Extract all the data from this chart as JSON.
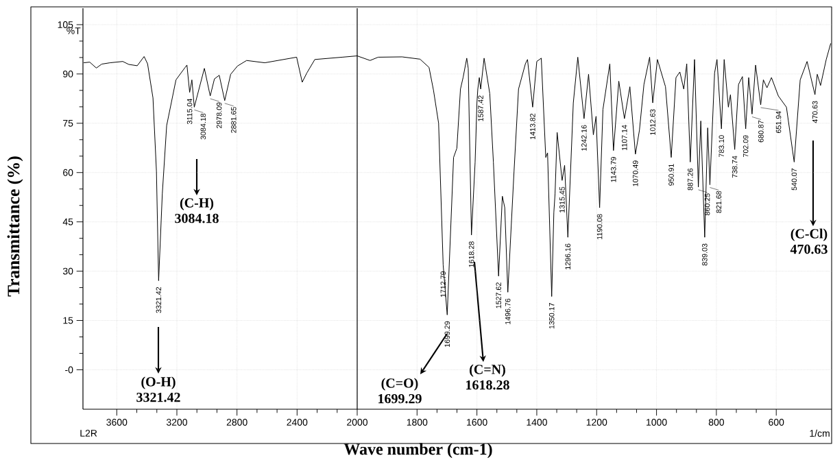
{
  "chart_data": [
    {
      "type": "line",
      "ylabel": "Transmittance (%)",
      "xlim": [
        3825,
        2000
      ],
      "ylim": [
        -12,
        110
      ],
      "xticks": [
        3600,
        3200,
        2800,
        2400,
        2000
      ],
      "yticks": [
        {
          "value": 0,
          "label": "-0"
        },
        15,
        30,
        45,
        60,
        75,
        90,
        105
      ],
      "grid": true,
      "color": "#000000",
      "x": [
        3820,
        3780,
        3736,
        3700,
        3645,
        3560,
        3520,
        3464,
        3418,
        3395,
        3359,
        3336,
        3321.42,
        3297,
        3268,
        3206,
        3145,
        3133,
        3115.04,
        3100,
        3084.18,
        3017,
        2978.09,
        2950,
        2918,
        2881.65,
        2842,
        2797,
        2736,
        2615,
        2403,
        2366,
        2335,
        2282,
        2100,
        2000
      ],
      "values": [
        93.4,
        93.6,
        91.8,
        93.0,
        93.4,
        93.8,
        92.9,
        92.5,
        95.3,
        93.1,
        82.7,
        60.4,
        27.1,
        53.5,
        74.3,
        88.2,
        92,
        92.7,
        84.4,
        88.2,
        79.9,
        91.7,
        83.3,
        88.5,
        89.6,
        81.9,
        89.9,
        92.4,
        94.1,
        93.4,
        95.1,
        87.5,
        90.3,
        94.4,
        95.1,
        95.5
      ],
      "annotations": [
        "%T",
        "L2R",
        {
          "text": "3321.42",
          "x": 3321.42,
          "y": 27.1
        },
        {
          "text": "3115.04",
          "x": 3115.04,
          "y": 84.4
        },
        {
          "text": "3084.18",
          "x": 3084.18,
          "y": 79.9
        },
        {
          "text": "2978.09",
          "x": 2978.09,
          "y": 83.3
        },
        {
          "text": "2881.65",
          "x": 2881.65,
          "y": 81.9
        },
        "(O-H) 3321.42",
        "(C-H) 3084.18"
      ]
    },
    {
      "type": "line",
      "xlabel": "Wave number (cm-1)",
      "xlim": [
        2000,
        415
      ],
      "ylim": [
        -12,
        110
      ],
      "xticks": [
        1800,
        1600,
        1400,
        1200,
        1000,
        800,
        600
      ],
      "yticks": [
        0,
        15,
        30,
        45,
        60,
        75,
        90,
        105
      ],
      "tick_labels": "x",
      "grid": true,
      "color": "#000000",
      "x": [
        2000,
        1957,
        1930,
        1850,
        1790,
        1760,
        1745,
        1728,
        1712.79,
        1699.29,
        1678,
        1667,
        1655,
        1646,
        1634,
        1629,
        1618.28,
        1606,
        1600,
        1597,
        1592,
        1587.42,
        1576,
        1557,
        1545,
        1527.62,
        1515,
        1507,
        1496.76,
        1476,
        1461,
        1438,
        1431,
        1413.82,
        1400,
        1385,
        1370,
        1364,
        1350.17,
        1343,
        1339,
        1332,
        1315.45,
        1307,
        1296.16,
        1278,
        1263,
        1242.16,
        1227,
        1211,
        1202,
        1190.08,
        1179,
        1156,
        1143.79,
        1126,
        1107.14,
        1089,
        1070.49,
        1057,
        1042,
        1023,
        1012.63,
        997,
        970,
        950.91,
        935,
        922,
        909,
        899,
        887.26,
        873,
        860.25,
        852,
        839.03,
        829,
        821.68,
        806,
        798,
        783.1,
        774,
        760,
        753,
        738.74,
        726,
        713,
        702.09,
        692,
        680.87,
        669,
        651.94,
        643,
        631,
        616,
        593,
        566,
        540.07,
        520,
        497,
        470.63,
        463,
        452,
        433,
        418
      ],
      "values": [
        95.5,
        94.1,
        95.1,
        95.2,
        94.5,
        92,
        85,
        75,
        31.9,
        16.7,
        64.6,
        67.4,
        85.4,
        89,
        94.8,
        91.7,
        41,
        63.2,
        81.2,
        85.4,
        88.9,
        85.4,
        94.8,
        84,
        63.2,
        28.5,
        52.8,
        49.3,
        23.6,
        60.4,
        85.4,
        93.1,
        94.4,
        79.9,
        93.8,
        94.8,
        64.6,
        66,
        22.3,
        47.9,
        53.5,
        72.2,
        57.6,
        62.2,
        40.3,
        81.2,
        95.1,
        76.4,
        89.9,
        71.5,
        77.1,
        49.3,
        79.2,
        93.1,
        66.7,
        87.8,
        76.4,
        86.1,
        65.6,
        72.9,
        86.8,
        95.1,
        81.2,
        94.4,
        86.1,
        64.6,
        88.9,
        90.6,
        85.4,
        93.1,
        63.2,
        94.4,
        55.6,
        75.7,
        40.3,
        73.6,
        56.3,
        90.3,
        94.4,
        73.3,
        94.4,
        79.9,
        83.7,
        67,
        86.8,
        89.2,
        73.3,
        88.9,
        77.8,
        92.7,
        80.6,
        88.2,
        85.8,
        88.9,
        83.3,
        79.9,
        63.2,
        88.2,
        93.8,
        83.7,
        89.9,
        86.5,
        94.4,
        99.3
      ],
      "annotations": [
        "1/cm",
        {
          "text": "1712.79",
          "x": 1712.79,
          "y": 31.9
        },
        {
          "text": "1699.29",
          "x": 1699.29,
          "y": 16.7
        },
        {
          "text": "1618.28",
          "x": 1618.28,
          "y": 41
        },
        {
          "text": "1587.42",
          "x": 1587.42,
          "y": 85.4
        },
        {
          "text": "1527.62",
          "x": 1527.62,
          "y": 28.5
        },
        {
          "text": "1496.76",
          "x": 1496.76,
          "y": 23.6
        },
        {
          "text": "1413.82",
          "x": 1413.82,
          "y": 79.9
        },
        {
          "text": "1350.17",
          "x": 1350.17,
          "y": 22.3
        },
        {
          "text": "1315.45",
          "x": 1315.45,
          "y": 57.6
        },
        {
          "text": "1296.16",
          "x": 1296.16,
          "y": 40.3
        },
        {
          "text": "1242.16",
          "x": 1242.16,
          "y": 76.4
        },
        {
          "text": "1190.08",
          "x": 1190.08,
          "y": 49.3
        },
        {
          "text": "1143.79",
          "x": 1143.79,
          "y": 66.7
        },
        {
          "text": "1107.14",
          "x": 1107.14,
          "y": 76.4
        },
        {
          "text": "1070.49",
          "x": 1070.49,
          "y": 65.6
        },
        {
          "text": "1012.63",
          "x": 1012.63,
          "y": 81.2
        },
        {
          "text": "950.91",
          "x": 950.91,
          "y": 64.6
        },
        {
          "text": "887.26",
          "x": 887.26,
          "y": 63.2
        },
        {
          "text": "860.25",
          "x": 860.25,
          "y": 55.6
        },
        {
          "text": "839.03",
          "x": 839.03,
          "y": 40.3
        },
        {
          "text": "821.68",
          "x": 821.68,
          "y": 56.3
        },
        {
          "text": "783.10",
          "x": 783.1,
          "y": 73.3
        },
        {
          "text": "738.74",
          "x": 738.74,
          "y": 67
        },
        {
          "text": "702.09",
          "x": 702.09,
          "y": 73.3
        },
        {
          "text": "680.87",
          "x": 680.87,
          "y": 77.8
        },
        {
          "text": "651.94",
          "x": 651.94,
          "y": 80.6
        },
        {
          "text": "540.07",
          "x": 540.07,
          "y": 63.2
        },
        {
          "text": "470.63",
          "x": 470.63,
          "y": 83.7
        },
        "(C=O) 1699.29",
        "(C=N) 1618.28",
        "(C-Cl) 470.63"
      ]
    }
  ]
}
